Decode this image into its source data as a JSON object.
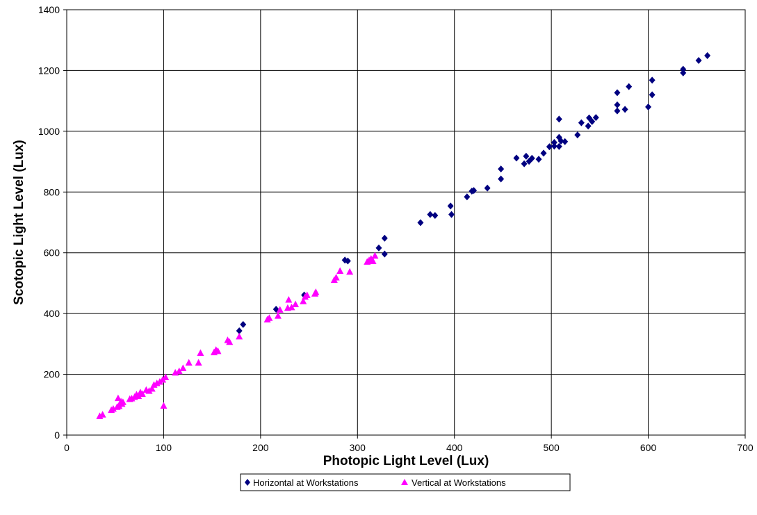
{
  "chart_data": {
    "type": "scatter",
    "title": "",
    "xlabel": "Photopic Light Level (Lux)",
    "ylabel": "Scotopic Light Level (Lux)",
    "xlim": [
      0,
      700
    ],
    "ylim": [
      0,
      1400
    ],
    "xticks": [
      "0",
      "100",
      "200",
      "300",
      "400",
      "500",
      "600",
      "700"
    ],
    "yticks": [
      "0",
      "200",
      "400",
      "600",
      "800",
      "1000",
      "1200",
      "1400"
    ],
    "grid": true,
    "legend_position": "bottom",
    "series": [
      {
        "name": "Horizontal at Workstations",
        "marker": "diamond",
        "color": "#000080",
        "points": [
          [
            178,
            343
          ],
          [
            182,
            364
          ],
          [
            216,
            414
          ],
          [
            245,
            461
          ],
          [
            287,
            576
          ],
          [
            290,
            573
          ],
          [
            322,
            616
          ],
          [
            328,
            648
          ],
          [
            328,
            596
          ],
          [
            365,
            699
          ],
          [
            375,
            726
          ],
          [
            380,
            723
          ],
          [
            396,
            754
          ],
          [
            397,
            726
          ],
          [
            413,
            784
          ],
          [
            418,
            803
          ],
          [
            420,
            805
          ],
          [
            434,
            813
          ],
          [
            448,
            843
          ],
          [
            448,
            876
          ],
          [
            464,
            912
          ],
          [
            472,
            893
          ],
          [
            474,
            918
          ],
          [
            477,
            901
          ],
          [
            480,
            911
          ],
          [
            487,
            908
          ],
          [
            492,
            928
          ],
          [
            498,
            949
          ],
          [
            503,
            951
          ],
          [
            503,
            963
          ],
          [
            508,
            950
          ],
          [
            508,
            980
          ],
          [
            508,
            1040
          ],
          [
            510,
            968
          ],
          [
            514,
            966
          ],
          [
            527,
            988
          ],
          [
            531,
            1028
          ],
          [
            538,
            1017
          ],
          [
            539,
            1044
          ],
          [
            542,
            1032
          ],
          [
            546,
            1045
          ],
          [
            568,
            1127
          ],
          [
            568,
            1067
          ],
          [
            568,
            1087
          ],
          [
            576,
            1072
          ],
          [
            580,
            1147
          ],
          [
            600,
            1080
          ],
          [
            604,
            1168
          ],
          [
            604,
            1120
          ],
          [
            636,
            1204
          ],
          [
            636,
            1192
          ],
          [
            652,
            1233
          ],
          [
            661,
            1249
          ]
        ]
      },
      {
        "name": "Vertical at Workstations",
        "marker": "triangle",
        "color": "#ff00ff",
        "points": [
          [
            34,
            62
          ],
          [
            37,
            67
          ],
          [
            46,
            82
          ],
          [
            48,
            86
          ],
          [
            52,
            92
          ],
          [
            53,
            121
          ],
          [
            54,
            95
          ],
          [
            56,
            110
          ],
          [
            57,
            102
          ],
          [
            58,
            108
          ],
          [
            65,
            118
          ],
          [
            67,
            120
          ],
          [
            70,
            125
          ],
          [
            72,
            133
          ],
          [
            74,
            128
          ],
          [
            76,
            140
          ],
          [
            78,
            135
          ],
          [
            82,
            148
          ],
          [
            85,
            145
          ],
          [
            88,
            152
          ],
          [
            90,
            165
          ],
          [
            93,
            170
          ],
          [
            96,
            175
          ],
          [
            99,
            182
          ],
          [
            100,
            96
          ],
          [
            102,
            190
          ],
          [
            112,
            205
          ],
          [
            116,
            210
          ],
          [
            120,
            220
          ],
          [
            126,
            238
          ],
          [
            136,
            238
          ],
          [
            138,
            270
          ],
          [
            152,
            272
          ],
          [
            154,
            280
          ],
          [
            156,
            276
          ],
          [
            166,
            312
          ],
          [
            168,
            306
          ],
          [
            178,
            324
          ],
          [
            207,
            380
          ],
          [
            209,
            385
          ],
          [
            218,
            392
          ],
          [
            220,
            412
          ],
          [
            228,
            418
          ],
          [
            229,
            445
          ],
          [
            232,
            420
          ],
          [
            236,
            430
          ],
          [
            244,
            440
          ],
          [
            246,
            455
          ],
          [
            248,
            460
          ],
          [
            256,
            465
          ],
          [
            257,
            470
          ],
          [
            276,
            510
          ],
          [
            278,
            518
          ],
          [
            282,
            540
          ],
          [
            292,
            537
          ],
          [
            310,
            570
          ],
          [
            312,
            575
          ],
          [
            314,
            580
          ],
          [
            316,
            572
          ],
          [
            318,
            590
          ]
        ]
      }
    ]
  }
}
